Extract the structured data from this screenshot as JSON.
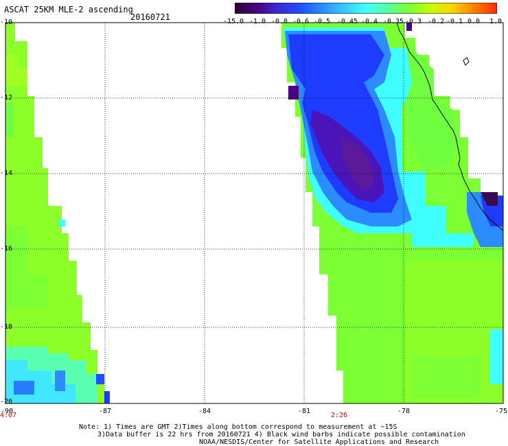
{
  "header": {
    "title": "ASCAT 25KM MLE-2 ascending",
    "date": "20160721"
  },
  "colorbar": {
    "labels": [
      "-15.0",
      "-1.0",
      "-0.8",
      "-0.6",
      "-0.5",
      "-0.45",
      "-0.4",
      "-0.35",
      "-0.3",
      "-0.2",
      "-0.1",
      "0.0",
      "1.0"
    ],
    "colors": [
      "#2a0030",
      "#4b0082",
      "#3a2bd6",
      "#1e50ff",
      "#2c8cff",
      "#35c8ff",
      "#40ffff",
      "#58ff9a",
      "#7cff33",
      "#c8ff00",
      "#ffd000",
      "#ff7a00",
      "#ff2a00"
    ]
  },
  "map": {
    "lon_labels": [
      "-90",
      "-87",
      "-84",
      "-81",
      "-78",
      "-75"
    ],
    "lat_labels": [
      "-10",
      "-12",
      "-14",
      "-16",
      "-18",
      "-20"
    ],
    "time_labels": [
      "4:07",
      "2:26"
    ],
    "lon_range": [
      -90,
      -75
    ],
    "lat_range": [
      -10,
      -20
    ],
    "grid": true
  },
  "notes": {
    "line1": "Note: 1) Times are GMT 2)Times along bottom correspond to measurement at ~15S",
    "line2": "3)Data buffer is 22 hrs from 20160721 4) Black wind barbs indicate possible contamination",
    "line3": "NOAA/NESDIS/Center for Satellite Applications and Research"
  }
}
